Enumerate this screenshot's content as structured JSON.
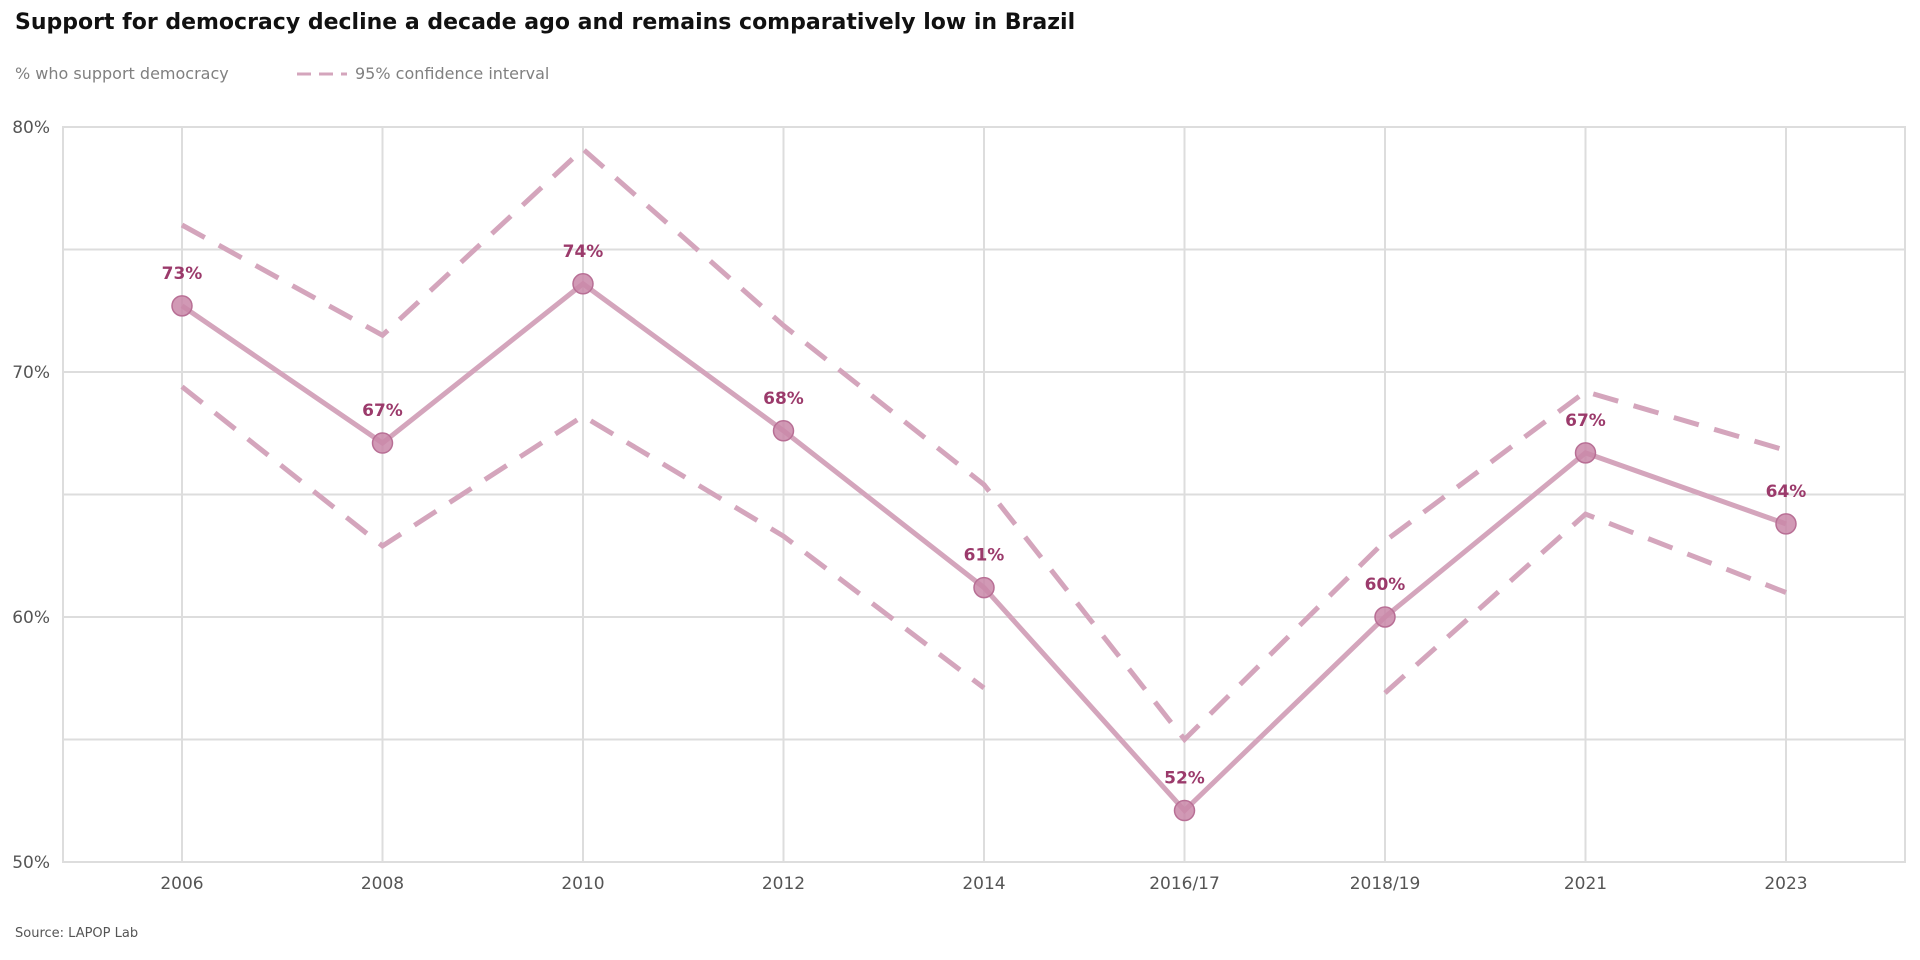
{
  "chart_data": {
    "type": "line",
    "title": "Support for democracy decline a decade ago and remains comparatively low in Brazil",
    "legend": {
      "series_label": "% who support democracy",
      "ci_label": "95% confidence interval",
      "placement": "top-left"
    },
    "categories": [
      "2006",
      "2008",
      "2010",
      "2012",
      "2014",
      "2016/17",
      "2018/19",
      "2021",
      "2023"
    ],
    "series": [
      {
        "values": [
          72.7,
          67.1,
          73.6,
          67.6,
          61.2,
          52.1,
          60.0,
          66.7,
          63.8
        ],
        "labels": [
          "73%",
          "67%",
          "74%",
          "68%",
          "61%",
          "52%",
          "60%",
          "67%",
          "64%"
        ]
      }
    ],
    "ci_upper": [
      76.0,
      71.5,
      79.1,
      71.9,
      65.4,
      55.0,
      63.1,
      69.2,
      66.8
    ],
    "ci_lower": [
      69.4,
      62.9,
      68.2,
      63.3,
      57.1,
      null,
      56.9,
      64.2,
      61.0
    ],
    "ylim": [
      50,
      80
    ],
    "yticks": [
      50,
      55,
      60,
      65,
      70,
      75,
      80
    ],
    "ytick_labels": [
      "50%",
      "",
      "60%",
      "",
      "70%",
      "",
      "80%"
    ],
    "xlabel": "",
    "ylabel": "",
    "grid": true,
    "colors": {
      "line": "#d4a5bc",
      "marker": "#c987a8",
      "label": "#9b3a6b",
      "grid": "#dddddd"
    }
  },
  "source": "Source: LAPOP Lab"
}
